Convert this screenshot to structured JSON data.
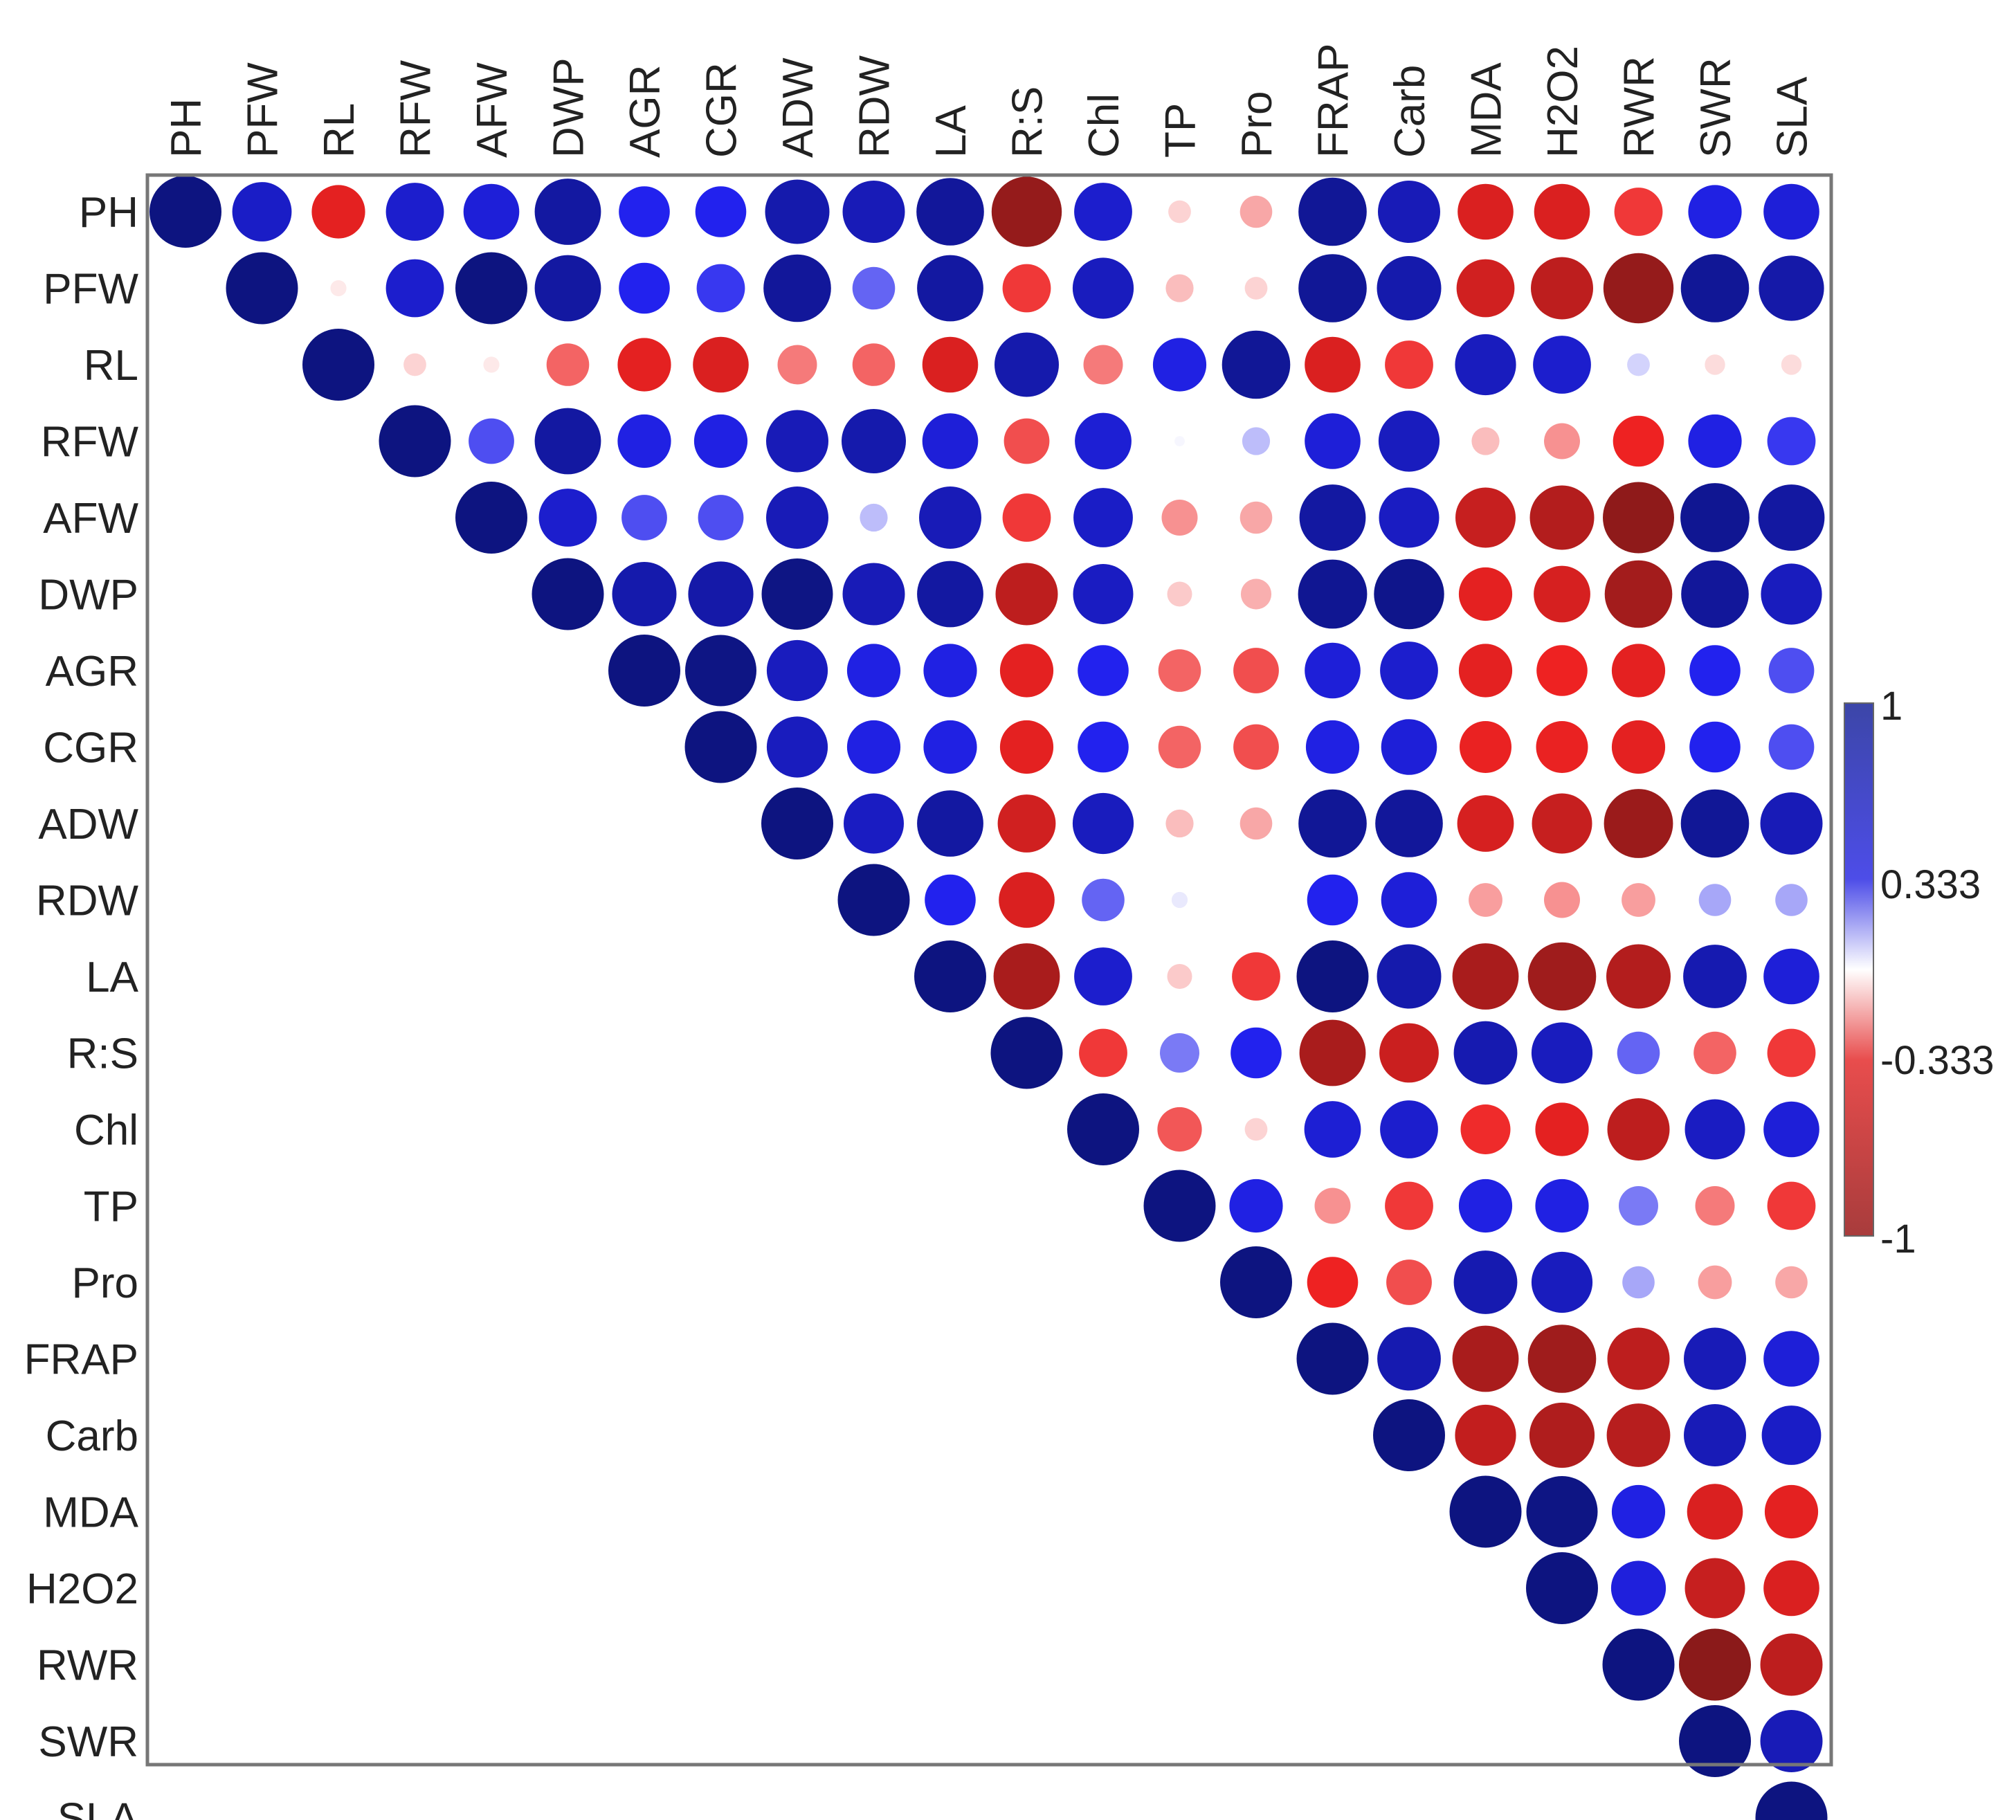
{
  "chart_data": {
    "type": "heatmap",
    "style": "correlation-circles-upper-triangle",
    "title": "",
    "variables": [
      "PH",
      "PFW",
      "RL",
      "RFW",
      "AFW",
      "DWP",
      "AGR",
      "CGR",
      "ADW",
      "RDW",
      "LA",
      "R:S",
      "Chl",
      "TP",
      "Pro",
      "FRAP",
      "Carb",
      "MDA",
      "H2O2",
      "RWR",
      "SWR",
      "SLA"
    ],
    "matrix": [
      [
        1.0,
        0.68,
        -0.55,
        0.65,
        0.6,
        0.85,
        0.5,
        0.5,
        0.8,
        0.75,
        0.88,
        -0.95,
        0.65,
        -0.1,
        -0.2,
        0.9,
        0.75,
        -0.6,
        -0.6,
        -0.45,
        0.55,
        0.6
      ],
      [
        null,
        1.0,
        -0.05,
        0.65,
        1.0,
        0.85,
        0.5,
        0.45,
        0.88,
        0.35,
        0.85,
        -0.45,
        0.72,
        -0.15,
        -0.1,
        0.9,
        0.8,
        -0.65,
        -0.75,
        -0.95,
        0.9,
        0.82
      ],
      [
        null,
        null,
        1.0,
        -0.1,
        -0.05,
        -0.35,
        -0.55,
        -0.6,
        -0.3,
        -0.35,
        -0.6,
        0.8,
        -0.3,
        0.55,
        0.9,
        -0.6,
        -0.45,
        0.72,
        0.65,
        0.1,
        -0.08,
        -0.08
      ],
      [
        null,
        null,
        null,
        1.0,
        0.4,
        0.85,
        0.55,
        0.55,
        0.75,
        0.8,
        0.6,
        -0.4,
        0.62,
        0.02,
        0.15,
        0.6,
        0.72,
        -0.15,
        -0.25,
        -0.5,
        0.55,
        0.45
      ],
      [
        null,
        null,
        null,
        null,
        1.0,
        0.65,
        0.4,
        0.4,
        0.75,
        0.15,
        0.75,
        -0.45,
        0.68,
        -0.25,
        -0.2,
        0.85,
        0.7,
        -0.7,
        -0.8,
        -0.98,
        0.92,
        0.85
      ],
      [
        null,
        null,
        null,
        null,
        null,
        1.0,
        0.8,
        0.82,
        0.98,
        0.75,
        0.85,
        -0.75,
        0.7,
        -0.12,
        -0.18,
        0.92,
        0.95,
        -0.55,
        -0.62,
        -0.88,
        0.88,
        0.72
      ],
      [
        null,
        null,
        null,
        null,
        null,
        null,
        1.0,
        0.98,
        0.72,
        0.55,
        0.55,
        -0.55,
        0.5,
        -0.35,
        -0.4,
        0.6,
        0.65,
        -0.55,
        -0.5,
        -0.55,
        0.5,
        0.4
      ],
      [
        null,
        null,
        null,
        null,
        null,
        null,
        null,
        1.0,
        0.72,
        0.55,
        0.55,
        -0.55,
        0.5,
        -0.35,
        -0.4,
        0.55,
        0.6,
        -0.52,
        -0.52,
        -0.55,
        0.5,
        0.4
      ],
      [
        null,
        null,
        null,
        null,
        null,
        null,
        null,
        null,
        1.0,
        0.7,
        0.85,
        -0.65,
        0.72,
        -0.15,
        -0.2,
        0.9,
        0.88,
        -0.62,
        -0.7,
        -0.92,
        0.9,
        0.75
      ],
      [
        null,
        null,
        null,
        null,
        null,
        null,
        null,
        null,
        null,
        1.0,
        0.5,
        -0.6,
        0.35,
        0.05,
        null,
        0.5,
        0.6,
        -0.22,
        -0.25,
        -0.22,
        0.2,
        0.2
      ],
      [
        null,
        null,
        null,
        null,
        null,
        null,
        null,
        null,
        null,
        null,
        1.0,
        -0.85,
        0.65,
        -0.12,
        -0.45,
        1.0,
        0.8,
        -0.85,
        -0.9,
        -0.8,
        0.78,
        0.6
      ],
      [
        null,
        null,
        null,
        null,
        null,
        null,
        null,
        null,
        null,
        null,
        null,
        1.0,
        -0.45,
        0.3,
        0.5,
        -0.85,
        -0.68,
        0.78,
        0.72,
        0.35,
        -0.35,
        -0.45
      ],
      [
        null,
        null,
        null,
        null,
        null,
        null,
        null,
        null,
        null,
        null,
        null,
        null,
        1.0,
        -0.38,
        -0.1,
        0.62,
        0.65,
        -0.48,
        -0.55,
        -0.75,
        0.7,
        0.6
      ],
      [
        null,
        null,
        null,
        null,
        null,
        null,
        null,
        null,
        null,
        null,
        null,
        null,
        null,
        1.0,
        0.55,
        -0.25,
        -0.45,
        0.55,
        0.55,
        0.3,
        -0.3,
        -0.45
      ],
      [
        null,
        null,
        null,
        null,
        null,
        null,
        null,
        null,
        null,
        null,
        null,
        null,
        null,
        null,
        1.0,
        -0.5,
        -0.4,
        0.78,
        0.72,
        0.2,
        -0.22,
        -0.2
      ],
      [
        null,
        null,
        null,
        null,
        null,
        null,
        null,
        null,
        null,
        null,
        null,
        null,
        null,
        null,
        null,
        1.0,
        0.78,
        -0.85,
        -0.9,
        -0.75,
        0.75,
        0.6
      ],
      [
        null,
        null,
        null,
        null,
        null,
        null,
        null,
        null,
        null,
        null,
        null,
        null,
        null,
        null,
        null,
        null,
        1.0,
        -0.72,
        -0.82,
        -0.78,
        0.75,
        0.68
      ],
      [
        null,
        null,
        null,
        null,
        null,
        null,
        null,
        null,
        null,
        null,
        null,
        null,
        null,
        null,
        null,
        null,
        null,
        1.0,
        0.98,
        0.55,
        -0.6,
        -0.55
      ],
      [
        null,
        null,
        null,
        null,
        null,
        null,
        null,
        null,
        null,
        null,
        null,
        null,
        null,
        null,
        null,
        null,
        null,
        null,
        1.0,
        0.58,
        -0.7,
        -0.6
      ],
      [
        null,
        null,
        null,
        null,
        null,
        null,
        null,
        null,
        null,
        null,
        null,
        null,
        null,
        null,
        null,
        null,
        null,
        null,
        null,
        1.0,
        -1.0,
        -0.75
      ],
      [
        null,
        null,
        null,
        null,
        null,
        null,
        null,
        null,
        null,
        null,
        null,
        null,
        null,
        null,
        null,
        null,
        null,
        null,
        null,
        null,
        1.0,
        0.75
      ],
      [
        null,
        null,
        null,
        null,
        null,
        null,
        null,
        null,
        null,
        null,
        null,
        null,
        null,
        null,
        null,
        null,
        null,
        null,
        null,
        null,
        null,
        1.0
      ]
    ],
    "colorbar": {
      "range": [
        -1,
        1
      ],
      "tick_labels": [
        "1",
        "0.333",
        "-0.333",
        "-1"
      ],
      "tick_values": [
        1,
        0.333,
        -0.333,
        -1
      ],
      "colors": {
        "neg_end": "#8b1a1a",
        "neg_mid": "#ee2222",
        "zero": "#ffffff",
        "pos_mid": "#2222ee",
        "pos_end": "#0d1480",
        "colorbar_top": "#3c46a8",
        "colorbar_bottom": "#a83c3c"
      }
    },
    "legend": "right"
  },
  "colors": {
    "frame": "#777777",
    "text": "#222222"
  }
}
